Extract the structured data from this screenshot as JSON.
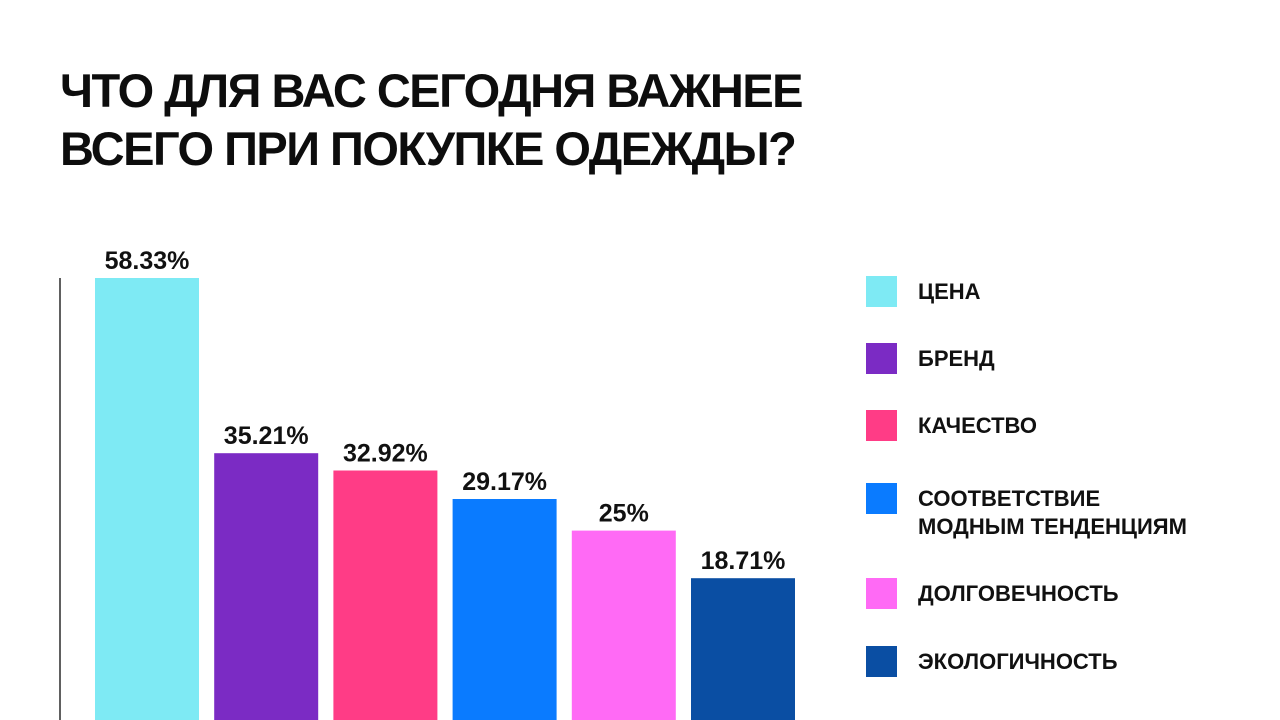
{
  "title_lines": [
    "ЧТО ДЛЯ ВАС СЕГОДНЯ ВАЖНЕЕ",
    "ВСЕГО ПРИ ПОКУПКЕ ОДЕЖДЫ?"
  ],
  "chart_data": {
    "type": "bar",
    "title": "ЧТО ДЛЯ ВАС СЕГОДНЯ ВАЖНЕЕ ВСЕГО ПРИ ПОКУПКЕ ОДЕЖДЫ?",
    "categories": [
      "ЦЕНА",
      "БРЕНД",
      "КАЧЕСТВО",
      "СООТВЕТСТВИЕ МОДНЫМ ТЕНДЕНЦИЯМ",
      "ДОЛГОВЕЧНОСТЬ",
      "ЭКОЛОГИЧНОСТЬ"
    ],
    "values": [
      58.33,
      35.21,
      32.92,
      29.17,
      25,
      18.71
    ],
    "data_labels": [
      "58.33%",
      "35.21%",
      "32.92%",
      "29.17%",
      "25%",
      "18.71%"
    ],
    "colors": [
      "#7EEAF4",
      "#7B2BC4",
      "#FF3C86",
      "#0A7BFF",
      "#FF6AF5",
      "#0A4EA3"
    ],
    "legend": {
      "placement": "right",
      "items": [
        {
          "lines": [
            "ЦЕНА"
          ],
          "color": "#7EEAF4"
        },
        {
          "lines": [
            "БРЕНД"
          ],
          "color": "#7B2BC4"
        },
        {
          "lines": [
            "КАЧЕСТВО"
          ],
          "color": "#FF3C86"
        },
        {
          "lines": [
            "СООТВЕТСТВИЕ",
            "МОДНЫМ ТЕНДЕНЦИЯМ"
          ],
          "color": "#0A7BFF"
        },
        {
          "lines": [
            "ДОЛГОВЕЧНОСТЬ"
          ],
          "color": "#FF6AF5"
        },
        {
          "lines": [
            "ЭКОЛОГИЧНОСТЬ"
          ],
          "color": "#0A4EA3"
        }
      ]
    },
    "grid": false,
    "y_axis_line": true
  }
}
